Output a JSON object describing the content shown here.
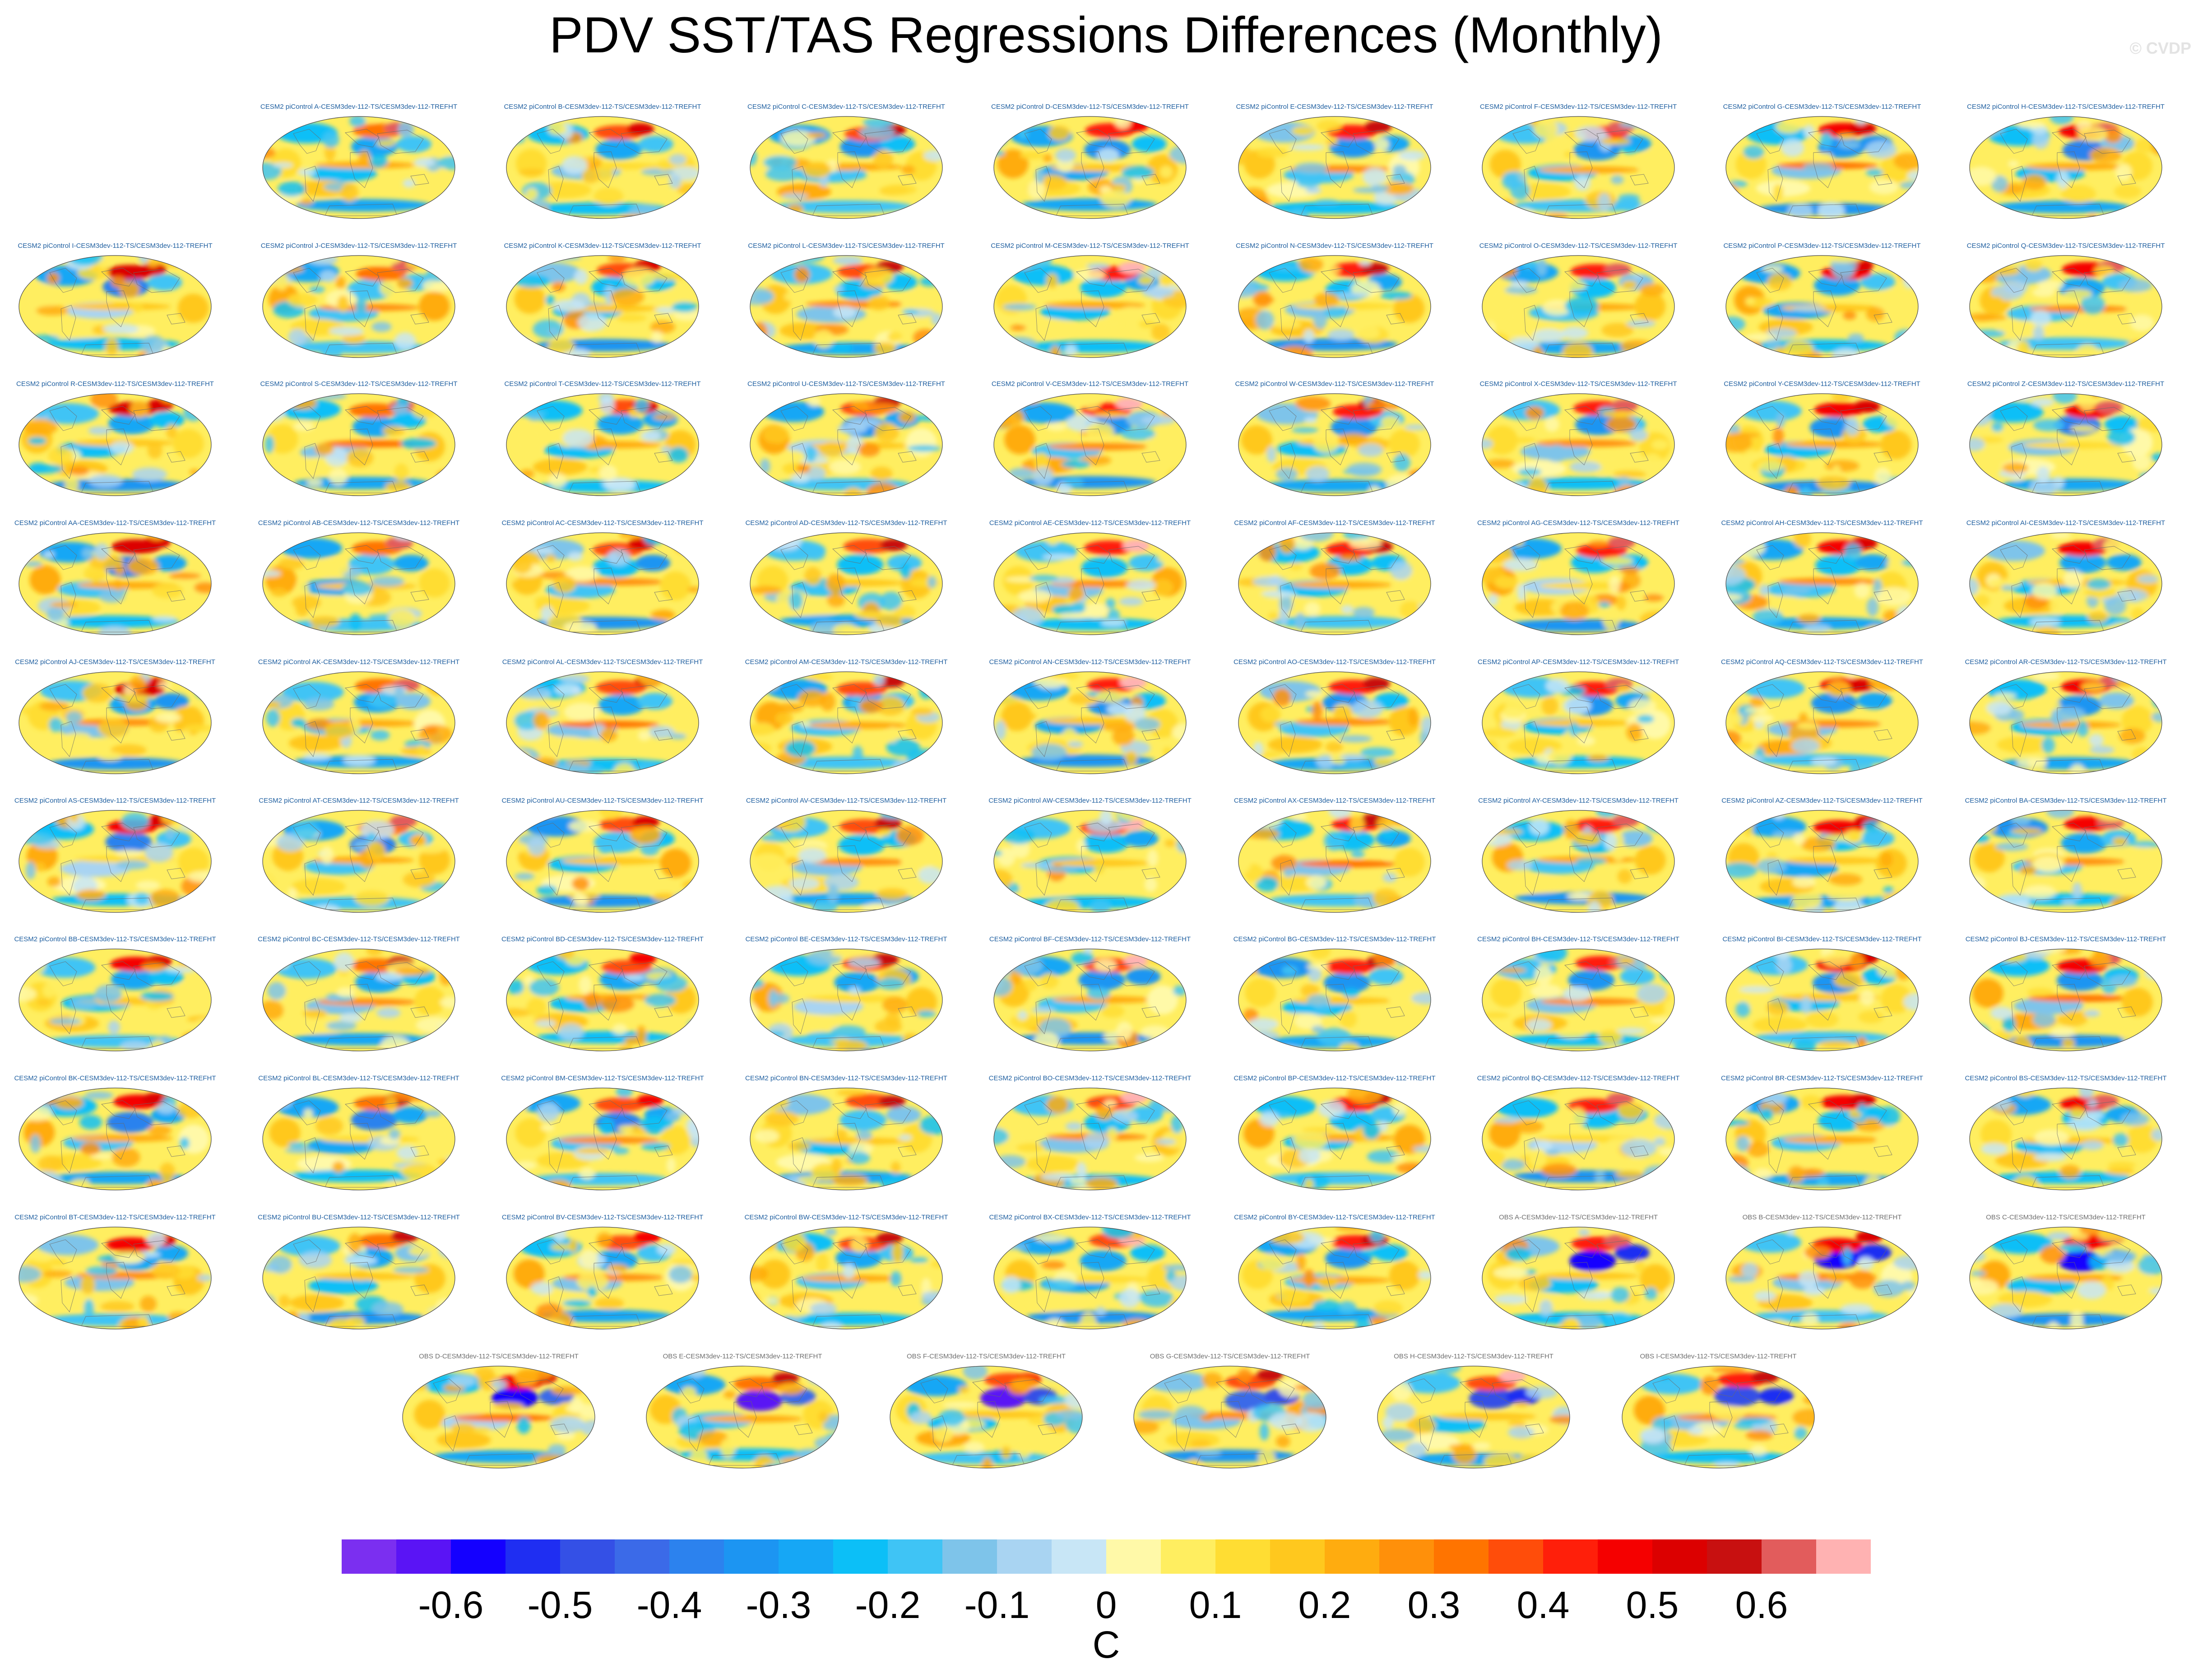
{
  "title": "PDV SST/TAS Regressions Differences (Monthly)",
  "watermark": "© CVDP",
  "panel_titles": [
    "CESM2 piControl A-CESM3dev-112-TS/CESM3dev-112-TREFHT",
    "CESM2 piControl B-CESM3dev-112-TS/CESM3dev-112-TREFHT",
    "CESM2 piControl C-CESM3dev-112-TS/CESM3dev-112-TREFHT",
    "CESM2 piControl D-CESM3dev-112-TS/CESM3dev-112-TREFHT",
    "CESM2 piControl E-CESM3dev-112-TS/CESM3dev-112-TREFHT",
    "CESM2 piControl F-CESM3dev-112-TS/CESM3dev-112-TREFHT",
    "CESM2 piControl G-CESM3dev-112-TS/CESM3dev-112-TREFHT",
    "CESM2 piControl H-CESM3dev-112-TS/CESM3dev-112-TREFHT",
    "CESM2 piControl I-CESM3dev-112-TS/CESM3dev-112-TREFHT",
    "CESM2 piControl J-CESM3dev-112-TS/CESM3dev-112-TREFHT",
    "CESM2 piControl K-CESM3dev-112-TS/CESM3dev-112-TREFHT",
    "CESM2 piControl L-CESM3dev-112-TS/CESM3dev-112-TREFHT",
    "CESM2 piControl M-CESM3dev-112-TS/CESM3dev-112-TREFHT",
    "CESM2 piControl N-CESM3dev-112-TS/CESM3dev-112-TREFHT",
    "CESM2 piControl O-CESM3dev-112-TS/CESM3dev-112-TREFHT",
    "CESM2 piControl P-CESM3dev-112-TS/CESM3dev-112-TREFHT",
    "CESM2 piControl Q-CESM3dev-112-TS/CESM3dev-112-TREFHT",
    "CESM2 piControl R-CESM3dev-112-TS/CESM3dev-112-TREFHT",
    "CESM2 piControl S-CESM3dev-112-TS/CESM3dev-112-TREFHT",
    "CESM2 piControl T-CESM3dev-112-TS/CESM3dev-112-TREFHT",
    "CESM2 piControl U-CESM3dev-112-TS/CESM3dev-112-TREFHT",
    "CESM2 piControl V-CESM3dev-112-TS/CESM3dev-112-TREFHT",
    "CESM2 piControl W-CESM3dev-112-TS/CESM3dev-112-TREFHT",
    "CESM2 piControl X-CESM3dev-112-TS/CESM3dev-112-TREFHT",
    "CESM2 piControl Y-CESM3dev-112-TS/CESM3dev-112-TREFHT",
    "CESM2 piControl Z-CESM3dev-112-TS/CESM3dev-112-TREFHT",
    "CESM2 piControl AA-CESM3dev-112-TS/CESM3dev-112-TREFHT",
    "CESM2 piControl AB-CESM3dev-112-TS/CESM3dev-112-TREFHT",
    "CESM2 piControl AC-CESM3dev-112-TS/CESM3dev-112-TREFHT",
    "CESM2 piControl AD-CESM3dev-112-TS/CESM3dev-112-TREFHT",
    "CESM2 piControl AE-CESM3dev-112-TS/CESM3dev-112-TREFHT",
    "CESM2 piControl AF-CESM3dev-112-TS/CESM3dev-112-TREFHT",
    "CESM2 piControl AG-CESM3dev-112-TS/CESM3dev-112-TREFHT",
    "CESM2 piControl AH-CESM3dev-112-TS/CESM3dev-112-TREFHT",
    "CESM2 piControl AI-CESM3dev-112-TS/CESM3dev-112-TREFHT",
    "CESM2 piControl AJ-CESM3dev-112-TS/CESM3dev-112-TREFHT",
    "CESM2 piControl AK-CESM3dev-112-TS/CESM3dev-112-TREFHT",
    "CESM2 piControl AL-CESM3dev-112-TS/CESM3dev-112-TREFHT",
    "CESM2 piControl AM-CESM3dev-112-TS/CESM3dev-112-TREFHT",
    "CESM2 piControl AN-CESM3dev-112-TS/CESM3dev-112-TREFHT",
    "CESM2 piControl AO-CESM3dev-112-TS/CESM3dev-112-TREFHT",
    "CESM2 piControl AP-CESM3dev-112-TS/CESM3dev-112-TREFHT",
    "CESM2 piControl AQ-CESM3dev-112-TS/CESM3dev-112-TREFHT",
    "CESM2 piControl AR-CESM3dev-112-TS/CESM3dev-112-TREFHT",
    "CESM2 piControl AS-CESM3dev-112-TS/CESM3dev-112-TREFHT",
    "CESM2 piControl AT-CESM3dev-112-TS/CESM3dev-112-TREFHT",
    "CESM2 piControl AU-CESM3dev-112-TS/CESM3dev-112-TREFHT",
    "CESM2 piControl AV-CESM3dev-112-TS/CESM3dev-112-TREFHT",
    "CESM2 piControl AW-CESM3dev-112-TS/CESM3dev-112-TREFHT",
    "CESM2 piControl AX-CESM3dev-112-TS/CESM3dev-112-TREFHT",
    "CESM2 piControl AY-CESM3dev-112-TS/CESM3dev-112-TREFHT",
    "CESM2 piControl AZ-CESM3dev-112-TS/CESM3dev-112-TREFHT",
    "CESM2 piControl BA-CESM3dev-112-TS/CESM3dev-112-TREFHT",
    "CESM2 piControl BB-CESM3dev-112-TS/CESM3dev-112-TREFHT",
    "CESM2 piControl BC-CESM3dev-112-TS/CESM3dev-112-TREFHT",
    "CESM2 piControl BD-CESM3dev-112-TS/CESM3dev-112-TREFHT",
    "CESM2 piControl BE-CESM3dev-112-TS/CESM3dev-112-TREFHT",
    "CESM2 piControl BF-CESM3dev-112-TS/CESM3dev-112-TREFHT",
    "CESM2 piControl BG-CESM3dev-112-TS/CESM3dev-112-TREFHT",
    "CESM2 piControl BH-CESM3dev-112-TS/CESM3dev-112-TREFHT",
    "CESM2 piControl BI-CESM3dev-112-TS/CESM3dev-112-TREFHT",
    "CESM2 piControl BJ-CESM3dev-112-TS/CESM3dev-112-TREFHT",
    "CESM2 piControl BK-CESM3dev-112-TS/CESM3dev-112-TREFHT",
    "CESM2 piControl BL-CESM3dev-112-TS/CESM3dev-112-TREFHT",
    "CESM2 piControl BM-CESM3dev-112-TS/CESM3dev-112-TREFHT",
    "CESM2 piControl BN-CESM3dev-112-TS/CESM3dev-112-TREFHT",
    "CESM2 piControl BO-CESM3dev-112-TS/CESM3dev-112-TREFHT",
    "CESM2 piControl BP-CESM3dev-112-TS/CESM3dev-112-TREFHT",
    "CESM2 piControl BQ-CESM3dev-112-TS/CESM3dev-112-TREFHT",
    "CESM2 piControl BR-CESM3dev-112-TS/CESM3dev-112-TREFHT",
    "CESM2 piControl BS-CESM3dev-112-TS/CESM3dev-112-TREFHT",
    "CESM2 piControl BT-CESM3dev-112-TS/CESM3dev-112-TREFHT",
    "CESM2 piControl BU-CESM3dev-112-TS/CESM3dev-112-TREFHT",
    "CESM2 piControl BV-CESM3dev-112-TS/CESM3dev-112-TREFHT",
    "CESM2 piControl BW-CESM3dev-112-TS/CESM3dev-112-TREFHT",
    "CESM2 piControl BX-CESM3dev-112-TS/CESM3dev-112-TREFHT",
    "CESM2 piControl BY-CESM3dev-112-TS/CESM3dev-112-TREFHT",
    "OBS A-CESM3dev-112-TS/CESM3dev-112-TREFHT",
    "OBS B-CESM3dev-112-TS/CESM3dev-112-TREFHT",
    "OBS C-CESM3dev-112-TS/CESM3dev-112-TREFHT",
    "OBS D-CESM3dev-112-TS/CESM3dev-112-TREFHT",
    "OBS E-CESM3dev-112-TS/CESM3dev-112-TREFHT",
    "OBS F-CESM3dev-112-TS/CESM3dev-112-TREFHT",
    "OBS G-CESM3dev-112-TS/CESM3dev-112-TREFHT",
    "OBS H-CESM3dev-112-TS/CESM3dev-112-TREFHT",
    "OBS I-CESM3dev-112-TS/CESM3dev-112-TREFHT"
  ],
  "chart_data": {
    "type": "heatmap",
    "title": "PDV SST/TAS Regressions Differences (Monthly)",
    "projection": "global map (Robinson-like)",
    "panel_count": 86,
    "colorbar": {
      "unit": "C",
      "orientation": "horizontal",
      "levels": [
        -0.65,
        -0.6,
        -0.55,
        -0.5,
        -0.45,
        -0.4,
        -0.35,
        -0.3,
        -0.25,
        -0.2,
        -0.15,
        -0.1,
        -0.05,
        0,
        0.05,
        0.1,
        0.15,
        0.2,
        0.25,
        0.3,
        0.35,
        0.4,
        0.45,
        0.5,
        0.55,
        0.6,
        0.65
      ],
      "colors": [
        "#7b2ff0",
        "#5a14f5",
        "#1400ff",
        "#1f2ef2",
        "#3450e6",
        "#3b6ae8",
        "#2c82ee",
        "#1c95f2",
        "#16a7f5",
        "#0cbff7",
        "#3fc4f5",
        "#7ec4ea",
        "#a9d4f2",
        "#c8e6f6",
        "#fff9a8",
        "#ffee60",
        "#ffdd33",
        "#ffc81e",
        "#ffac0f",
        "#ff900a",
        "#ff7400",
        "#ff4d0a",
        "#ff1f0a",
        "#f50000",
        "#dc0000",
        "#c81010",
        "#e25c5c",
        "#ffb2b2"
      ],
      "tick_labels": [
        "-0.6",
        "-0.5",
        "-0.4",
        "-0.3",
        "-0.2",
        "-0.1",
        "0",
        "0.1",
        "0.2",
        "0.3",
        "0.4",
        "0.5",
        "0.6"
      ],
      "tick_values": [
        -0.6,
        -0.5,
        -0.4,
        -0.3,
        -0.2,
        -0.1,
        0,
        0.1,
        0.2,
        0.3,
        0.4,
        0.5,
        0.6
      ],
      "range": [
        -0.7,
        0.7
      ]
    }
  }
}
